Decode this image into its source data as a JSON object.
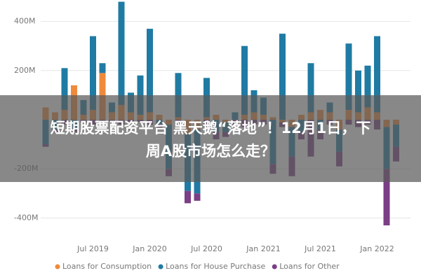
{
  "chart_data": {
    "type": "stacked-bar",
    "categories": [
      null,
      null,
      null,
      null,
      null,
      "Jul 2019",
      null,
      null,
      null,
      null,
      null,
      "Jan 2020",
      null,
      null,
      null,
      null,
      null,
      "Jul 2020",
      null,
      null,
      null,
      null,
      null,
      "Jan 2021",
      null,
      null,
      null,
      null,
      null,
      "Jul 2021",
      null,
      null,
      null,
      null,
      null,
      "Jan 2022",
      null,
      null
    ],
    "series": [
      {
        "name": "Loans for Consumption",
        "color": "#ef8a3a",
        "values": [
          50,
          30,
          40,
          140,
          20,
          40,
          190,
          30,
          60,
          30,
          20,
          30,
          20,
          -20,
          10,
          -60,
          -40,
          10,
          20,
          -10,
          0,
          20,
          30,
          20,
          10,
          -10,
          -30,
          20,
          30,
          40,
          30,
          -40,
          40,
          30,
          50,
          30,
          -30,
          -20
        ]
      },
      {
        "name": "Loans for House Purchase",
        "color": "#1f7ba3",
        "values": [
          -100,
          -40,
          170,
          -40,
          60,
          300,
          40,
          40,
          420,
          80,
          160,
          340,
          -20,
          -180,
          180,
          -230,
          -260,
          160,
          -50,
          -40,
          30,
          280,
          90,
          70,
          -180,
          350,
          -120,
          -50,
          200,
          -40,
          40,
          -90,
          270,
          170,
          170,
          310,
          -170,
          -90
        ]
      },
      {
        "name": "Loans for Other",
        "color": "#7b3f85",
        "values": [
          -10,
          -10,
          -20,
          -10,
          -10,
          -20,
          -10,
          -10,
          -20,
          -10,
          -10,
          -20,
          -20,
          -30,
          -20,
          -50,
          -30,
          -20,
          -30,
          -20,
          -20,
          -30,
          -20,
          -20,
          -40,
          -20,
          -80,
          -30,
          -150,
          -40,
          -20,
          -60,
          -20,
          -30,
          -20,
          -40,
          -230,
          -60
        ]
      }
    ],
    "ylim": [
      -470,
      470
    ],
    "yticks": [
      {
        "value": 400,
        "label": "400M"
      },
      {
        "value": 200,
        "label": "200M"
      },
      {
        "value": -200,
        "label": "-200M"
      },
      {
        "value": -400,
        "label": "-400M"
      }
    ],
    "grid": true
  },
  "banner": {
    "lines": [
      "短期股票配资平台 黑天鹅“落地”！12月1日，下",
      "周A股市场怎么走？"
    ]
  }
}
